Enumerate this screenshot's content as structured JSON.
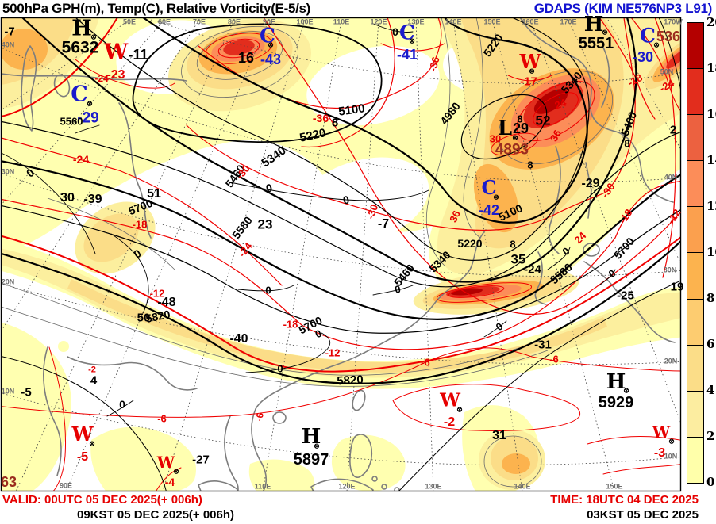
{
  "title": {
    "left": "500hPa GPH(m), Temp(C), Relative Vorticity(E-5/s)",
    "right": "GDAPS (KIM NE576NP3 L91)"
  },
  "footer": {
    "valid_utc": "VALID: 00UTC 05 DEC 2025(+ 006h)",
    "valid_kst": "09KST 05 DEC 2025(+ 006h)",
    "time_utc": "TIME: 18UTC 04 DEC 2025",
    "time_kst": "03KST 05 DEC 2025"
  },
  "colorbar": {
    "ticks": [
      "20",
      "18",
      "16",
      "14",
      "12",
      "10",
      "8",
      "6",
      "4",
      "2",
      "0"
    ],
    "colors": [
      "#b40000",
      "#e22d1d",
      "#ec6140",
      "#fc8d59",
      "#fba04e",
      "#fcb34e",
      "#fdcc70",
      "#fbdd88",
      "#fceda0",
      "#ffffaa"
    ]
  },
  "map": {
    "palette": {
      "k": "#000000",
      "r": "#e60000",
      "b": "#1a1acc",
      "d": "#9b2d1f",
      "g": "#6f6f6f"
    },
    "labels": [
      [
        "H",
        103,
        36,
        "k",
        27,
        0,
        1
      ],
      [
        "5632",
        101,
        60,
        "k",
        21
      ],
      [
        "W",
        146,
        66,
        "r",
        27,
        0,
        1
      ],
      [
        "-11",
        174,
        69,
        "k",
        18
      ],
      [
        "-23",
        146,
        95,
        "r",
        16
      ],
      [
        "-24",
        128,
        99,
        "r",
        12
      ],
      [
        "C",
        100,
        119,
        "b",
        27,
        0,
        1
      ],
      [
        "-29",
        111,
        149,
        "b",
        19
      ],
      [
        "5560",
        90,
        153,
        "k",
        13
      ],
      [
        "C",
        337,
        45,
        "b",
        25,
        0,
        1
      ],
      [
        "16",
        310,
        73,
        "k",
        18
      ],
      [
        "-43",
        341,
        75,
        "b",
        18
      ],
      [
        "C",
        513,
        41,
        "b",
        25,
        0,
        1
      ],
      [
        "-41",
        513,
        69,
        "b",
        18
      ],
      [
        "0",
        498,
        40,
        "k",
        14
      ],
      [
        "H",
        748,
        31,
        "k",
        26,
        0,
        1
      ],
      [
        "5551",
        751,
        55,
        "k",
        20
      ],
      [
        "W",
        668,
        78,
        "r",
        24,
        0,
        1
      ],
      [
        "-17",
        666,
        103,
        "r",
        15
      ],
      [
        "C",
        816,
        45,
        "b",
        25,
        0,
        1
      ],
      [
        "536",
        842,
        46,
        "d",
        18
      ],
      [
        "-30",
        810,
        72,
        "b",
        18
      ],
      [
        "C",
        616,
        237,
        "b",
        24,
        0,
        1
      ],
      [
        "-42",
        616,
        265,
        "b",
        18
      ],
      [
        "L",
        636,
        162,
        "k",
        26,
        0,
        1
      ],
      [
        "29",
        656,
        162,
        "k",
        18
      ],
      [
        "4893",
        645,
        189,
        "d",
        19
      ],
      [
        "H",
        392,
        551,
        "k",
        26,
        0,
        1
      ],
      [
        "5897",
        392,
        580,
        "k",
        20
      ],
      [
        "H",
        776,
        482,
        "k",
        26,
        0,
        1
      ],
      [
        "5929",
        776,
        508,
        "k",
        20
      ],
      [
        "W",
        104,
        548,
        "r",
        24,
        0,
        1
      ],
      [
        "-5",
        104,
        577,
        "r",
        16
      ],
      [
        "W",
        209,
        583,
        "r",
        20,
        0,
        1
      ],
      [
        "-4",
        214,
        608,
        "r",
        14
      ],
      [
        "W",
        567,
        505,
        "r",
        23,
        0,
        1
      ],
      [
        "-2",
        566,
        533,
        "r",
        16
      ],
      [
        "W",
        833,
        545,
        "r",
        20,
        0,
        1
      ],
      [
        "-3",
        831,
        572,
        "r",
        16
      ],
      [
        "-7",
        12,
        40,
        "k",
        15
      ],
      [
        "30",
        85,
        250,
        "k",
        16
      ],
      [
        "-39",
        117,
        252,
        "k",
        16
      ],
      [
        "51",
        194,
        245,
        "k",
        16
      ],
      [
        "-48",
        210,
        382,
        "k",
        16
      ],
      [
        "50",
        181,
        401,
        "k",
        15
      ],
      [
        "-40",
        301,
        428,
        "k",
        16
      ],
      [
        "23",
        334,
        283,
        "k",
        17
      ],
      [
        "-7",
        483,
        283,
        "k",
        16
      ],
      [
        "4",
        118,
        480,
        "k",
        15
      ],
      [
        "-5",
        33,
        495,
        "k",
        15
      ],
      [
        "-27",
        253,
        580,
        "k",
        15
      ],
      [
        "31",
        629,
        550,
        "k",
        16
      ],
      [
        "-31",
        684,
        435,
        "k",
        15
      ],
      [
        "-25",
        788,
        373,
        "k",
        15
      ],
      [
        "19",
        853,
        362,
        "k",
        15
      ],
      [
        "35",
        653,
        327,
        "k",
        17
      ],
      [
        "-24",
        671,
        340,
        "k",
        15
      ],
      [
        "52",
        684,
        152,
        "k",
        17
      ],
      [
        "-29",
        744,
        232,
        "k",
        16
      ],
      [
        "2",
        848,
        164,
        "k",
        15
      ],
      [
        "63",
        11,
        608,
        "d",
        18
      ],
      [
        "8",
        422,
        155,
        "k",
        15
      ],
      [
        "8",
        646,
        308,
        "k",
        13
      ],
      [
        "8",
        668,
        208,
        "k",
        13
      ],
      [
        "8",
        790,
        181,
        "k",
        13
      ],
      [
        "8",
        655,
        150,
        "k",
        13
      ],
      [
        "0",
        38,
        218,
        "k",
        14,
        -40
      ],
      [
        "0",
        173,
        320,
        "k",
        14,
        -30
      ],
      [
        "0",
        339,
        237,
        "k",
        14,
        -15
      ],
      [
        "0",
        436,
        252,
        "k",
        14,
        -12
      ],
      [
        "0",
        401,
        421,
        "k",
        13,
        -25
      ],
      [
        "0",
        353,
        465,
        "k",
        13
      ],
      [
        "0",
        338,
        366,
        "k",
        13
      ],
      [
        "0",
        501,
        365,
        "k",
        13,
        -12
      ],
      [
        "0",
        713,
        317,
        "k",
        13,
        -40
      ],
      [
        "0",
        771,
        345,
        "k",
        13,
        -40
      ],
      [
        "0",
        629,
        412,
        "k",
        13,
        -35
      ],
      [
        "0",
        154,
        510,
        "k",
        14
      ],
      [
        "5100",
        443,
        139,
        "k",
        15,
        -8
      ],
      [
        "5100",
        643,
        268,
        "k",
        14,
        -25
      ],
      [
        "5220",
        394,
        171,
        "k",
        15,
        -12
      ],
      [
        "5220",
        621,
        57,
        "k",
        14,
        -55
      ],
      [
        "5220",
        592,
        307,
        "k",
        14
      ],
      [
        "5340",
        345,
        198,
        "k",
        15,
        -35
      ],
      [
        "5340",
        720,
        104,
        "k",
        14,
        -48
      ],
      [
        "5340",
        554,
        330,
        "k",
        14,
        -45
      ],
      [
        "5460",
        296,
        222,
        "k",
        14,
        -55
      ],
      [
        "5460",
        509,
        347,
        "k",
        14,
        -50
      ],
      [
        "5460",
        792,
        156,
        "k",
        14,
        -68
      ],
      [
        "5580",
        305,
        287,
        "k",
        14,
        -52
      ],
      [
        "5580",
        707,
        345,
        "k",
        14,
        -42
      ],
      [
        "5700",
        177,
        261,
        "k",
        14,
        -22
      ],
      [
        "5700",
        391,
        410,
        "k",
        14,
        -28
      ],
      [
        "5700",
        786,
        313,
        "k",
        14,
        -48
      ],
      [
        "5820",
        199,
        399,
        "k",
        14,
        -12
      ],
      [
        "5820",
        441,
        480,
        "k",
        15,
        -3
      ],
      [
        "4980",
        567,
        143,
        "k",
        14,
        -52
      ],
      [
        "-24",
        102,
        201,
        "r",
        14
      ],
      [
        "-18",
        176,
        283,
        "r",
        13
      ],
      [
        "-12",
        198,
        370,
        "r",
        13
      ],
      [
        "-36",
        404,
        149,
        "r",
        14
      ],
      [
        "-36",
        547,
        81,
        "r",
        13,
        -75
      ],
      [
        "-30",
        306,
        217,
        "r",
        13,
        -50
      ],
      [
        "-24",
        309,
        315,
        "r",
        13,
        -52
      ],
      [
        "-30",
        469,
        267,
        "r",
        13,
        -70
      ],
      [
        "36",
        573,
        273,
        "r",
        13,
        -65
      ],
      [
        "-18",
        366,
        409,
        "r",
        13
      ],
      [
        "-12",
        419,
        445,
        "r",
        13
      ],
      [
        "-6",
        536,
        457,
        "r",
        13
      ],
      [
        "-6",
        204,
        528,
        "r",
        13
      ],
      [
        "-6",
        327,
        526,
        "r",
        12,
        -80
      ],
      [
        "-6",
        698,
        453,
        "r",
        13
      ],
      [
        "-18",
        788,
        273,
        "r",
        13,
        -55
      ],
      [
        "-12",
        849,
        273,
        "r",
        13,
        -55
      ],
      [
        "-18",
        800,
        101,
        "r",
        13,
        -28
      ],
      [
        "-24",
        840,
        108,
        "r",
        13,
        -28
      ],
      [
        "24",
        706,
        131,
        "r",
        13,
        -20
      ],
      [
        "30",
        624,
        175,
        "r",
        13
      ],
      [
        "36",
        700,
        171,
        "r",
        13,
        -60
      ],
      [
        "24",
        731,
        300,
        "r",
        13,
        -45
      ],
      [
        "-30",
        766,
        240,
        "r",
        13,
        -55
      ],
      [
        "-2",
        116,
        467,
        "r",
        11
      ],
      [
        "40N",
        10,
        57,
        "g",
        9
      ],
      [
        "30N",
        10,
        217,
        "g",
        9
      ],
      [
        "20N",
        10,
        356,
        "g",
        9
      ],
      [
        "10N",
        10,
        494,
        "g",
        9
      ],
      [
        "50N",
        840,
        91,
        "g",
        9
      ],
      [
        "40N",
        845,
        224,
        "g",
        9
      ],
      [
        "30N",
        844,
        341,
        "g",
        9
      ],
      [
        "20N",
        845,
        456,
        "g",
        9
      ],
      [
        "10N",
        845,
        576,
        "g",
        9
      ],
      [
        "90E",
        83,
        613,
        "g",
        9
      ],
      [
        "110E",
        331,
        614,
        "g",
        9
      ],
      [
        "120E",
        437,
        614,
        "g",
        9
      ],
      [
        "130E",
        546,
        614,
        "g",
        9
      ],
      [
        "140E",
        658,
        614,
        "g",
        9
      ],
      [
        "150E",
        774,
        614,
        "g",
        9
      ],
      [
        "50E",
        163,
        28,
        "g",
        9
      ],
      [
        "60E",
        207,
        28,
        "g",
        9
      ],
      [
        "70E",
        251,
        28,
        "g",
        9
      ],
      [
        "80E",
        295,
        28,
        "g",
        9
      ],
      [
        "90E",
        339,
        28,
        "g",
        9
      ],
      [
        "100E",
        384,
        28,
        "g",
        9
      ],
      [
        "110E",
        430,
        28,
        "g",
        9
      ],
      [
        "120E",
        477,
        28,
        "g",
        9
      ],
      [
        "130E",
        524,
        28,
        "g",
        9
      ],
      [
        "140E",
        571,
        28,
        "g",
        9
      ],
      [
        "150E",
        620,
        28,
        "g",
        9
      ],
      [
        "160E",
        668,
        28,
        "g",
        9
      ],
      [
        "170E",
        716,
        28,
        "g",
        9
      ],
      [
        "170W",
        848,
        28,
        "g",
        9
      ],
      [
        "⊗",
        118,
        47,
        "k",
        9
      ],
      [
        "⊗",
        113,
        131,
        "k",
        9
      ],
      [
        "⊗",
        341,
        57,
        "k",
        9
      ],
      [
        "⊗",
        519,
        52,
        "k",
        9
      ],
      [
        "⊗",
        762,
        41,
        "k",
        9
      ],
      [
        "⊗",
        827,
        57,
        "k",
        9
      ],
      [
        "⊗",
        625,
        249,
        "k",
        9
      ],
      [
        "⊗",
        670,
        90,
        "k",
        9
      ],
      [
        "⊗",
        399,
        563,
        "k",
        9
      ],
      [
        "⊗",
        789,
        493,
        "k",
        9
      ],
      [
        "⊗",
        579,
        517,
        "k",
        9
      ],
      [
        "⊗",
        846,
        557,
        "k",
        9
      ],
      [
        "⊗",
        222,
        595,
        "k",
        9
      ],
      [
        "⊗",
        116,
        560,
        "k",
        9
      ],
      [
        "⊗",
        649,
        174,
        "k",
        9
      ]
    ]
  }
}
